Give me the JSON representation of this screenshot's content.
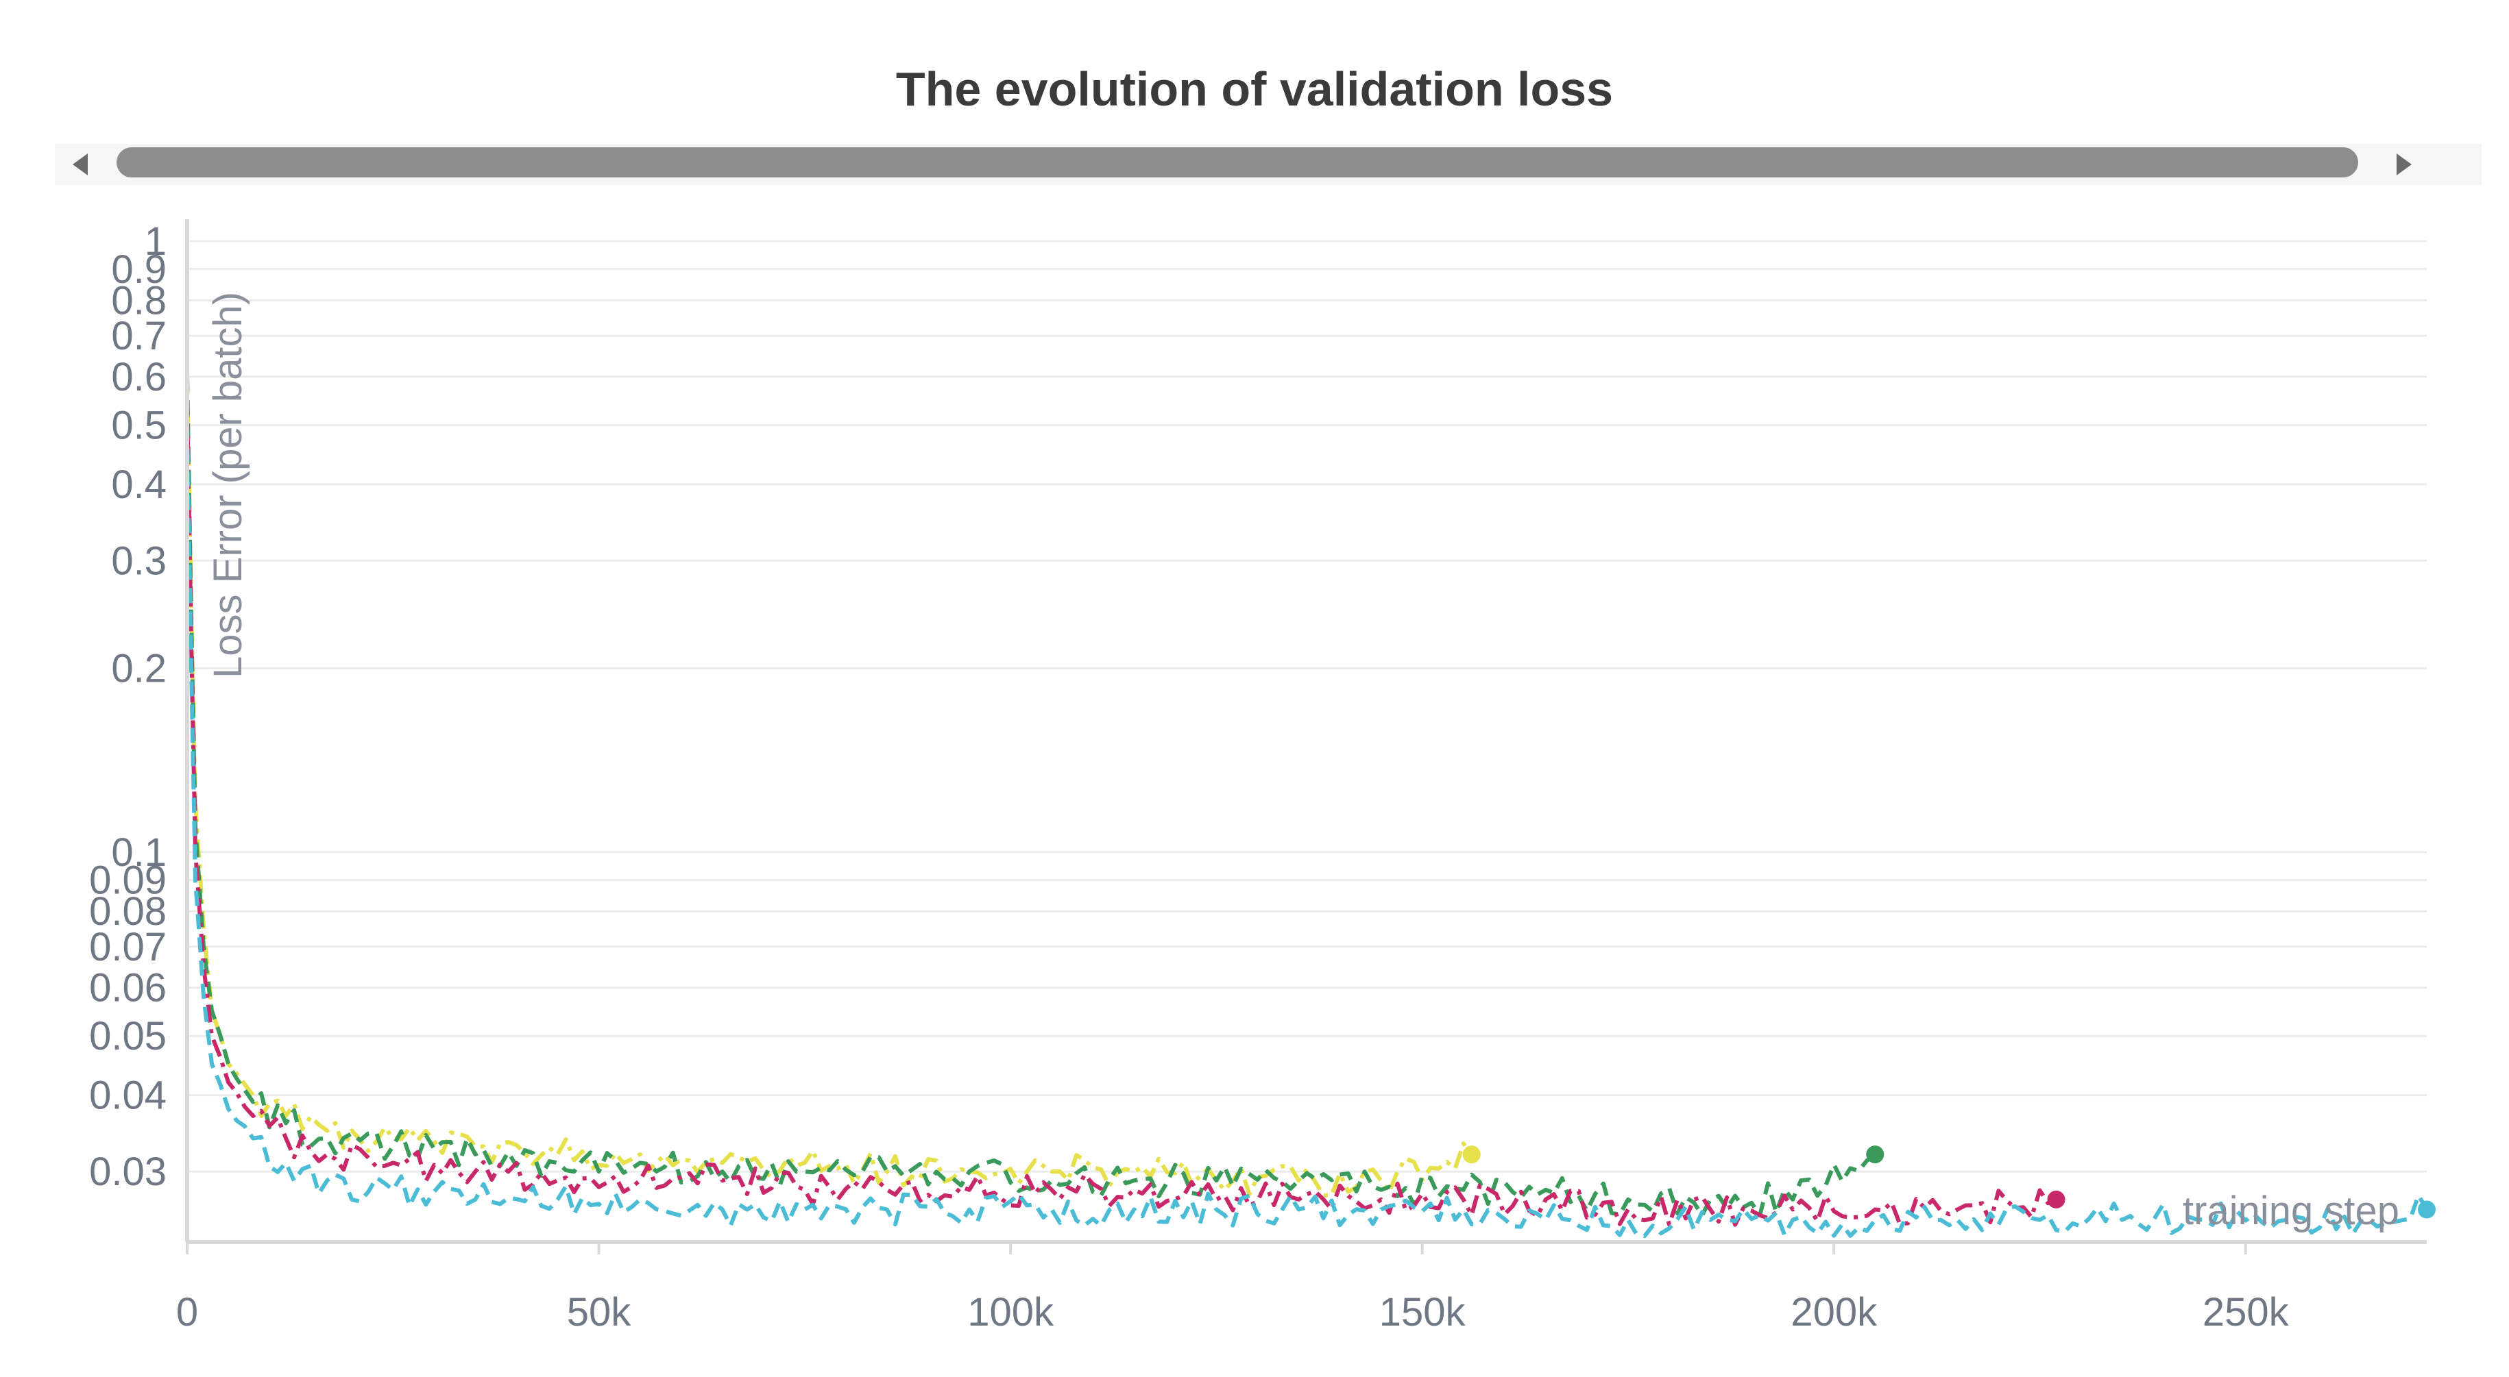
{
  "chart_data": {
    "type": "line",
    "title": "The evolution of validation loss",
    "xlabel": "training step",
    "ylabel": "Loss Error (per batch)",
    "xlim": [
      0,
      272000
    ],
    "ylim": [
      0.023,
      1.0
    ],
    "yscale": "log",
    "grid": true,
    "legend": "none",
    "x_ticks": [
      {
        "value": 0,
        "label": "0"
      },
      {
        "value": 50000,
        "label": "50k"
      },
      {
        "value": 100000,
        "label": "100k"
      },
      {
        "value": 150000,
        "label": "150k"
      },
      {
        "value": 200000,
        "label": "200k"
      },
      {
        "value": 250000,
        "label": "250k"
      }
    ],
    "y_ticks": [
      {
        "value": 1,
        "label": "1"
      },
      {
        "value": 0.9,
        "label": "0.9"
      },
      {
        "value": 0.8,
        "label": "0.8"
      },
      {
        "value": 0.7,
        "label": "0.7"
      },
      {
        "value": 0.6,
        "label": "0.6"
      },
      {
        "value": 0.5,
        "label": "0.5"
      },
      {
        "value": 0.4,
        "label": "0.4"
      },
      {
        "value": 0.3,
        "label": "0.3"
      },
      {
        "value": 0.2,
        "label": "0.2"
      },
      {
        "value": 0.1,
        "label": "0.1"
      },
      {
        "value": 0.09,
        "label": "0.09"
      },
      {
        "value": 0.08,
        "label": "0.08"
      },
      {
        "value": 0.07,
        "label": "0.07"
      },
      {
        "value": 0.06,
        "label": "0.06"
      },
      {
        "value": 0.05,
        "label": "0.05"
      },
      {
        "value": 0.04,
        "label": "0.04"
      },
      {
        "value": 0.03,
        "label": "0.03"
      }
    ],
    "series": [
      {
        "color": "#e6e04a",
        "dash": "dashdot",
        "x": [
          0,
          500,
          1000,
          2000,
          3000,
          5000,
          8000,
          12000,
          17000,
          25000,
          35000,
          45000,
          55000,
          65000,
          75000,
          85000,
          95000,
          105000,
          115000,
          125000,
          135000,
          145000,
          156000
        ],
        "y": [
          0.6,
          0.25,
          0.12,
          0.075,
          0.055,
          0.045,
          0.04,
          0.037,
          0.035,
          0.034,
          0.033,
          0.032,
          0.032,
          0.031,
          0.031,
          0.03,
          0.03,
          0.03,
          0.03,
          0.029,
          0.029,
          0.029,
          0.032
        ]
      },
      {
        "color": "#3a9a5c",
        "dash": "dashed",
        "x": [
          0,
          500,
          1000,
          2000,
          3000,
          5000,
          8000,
          12000,
          17000,
          25000,
          35000,
          45000,
          55000,
          65000,
          75000,
          85000,
          95000,
          105000,
          115000,
          125000,
          135000,
          145000,
          155000,
          165000,
          175000,
          185000,
          195000,
          205000
        ],
        "y": [
          0.6,
          0.24,
          0.11,
          0.07,
          0.055,
          0.045,
          0.039,
          0.036,
          0.034,
          0.033,
          0.032,
          0.031,
          0.031,
          0.03,
          0.03,
          0.03,
          0.03,
          0.029,
          0.029,
          0.029,
          0.029,
          0.028,
          0.028,
          0.028,
          0.027,
          0.027,
          0.027,
          0.032
        ]
      },
      {
        "color": "#c8286a",
        "dash": "dashdot",
        "x": [
          0,
          500,
          1000,
          2000,
          3000,
          5000,
          8000,
          12000,
          17000,
          25000,
          35000,
          45000,
          55000,
          65000,
          75000,
          85000,
          95000,
          105000,
          115000,
          125000,
          135000,
          145000,
          155000,
          165000,
          175000,
          185000,
          195000,
          205000,
          215000,
          227000
        ],
        "y": [
          0.55,
          0.22,
          0.1,
          0.065,
          0.05,
          0.042,
          0.037,
          0.034,
          0.032,
          0.031,
          0.03,
          0.029,
          0.029,
          0.029,
          0.028,
          0.028,
          0.028,
          0.028,
          0.028,
          0.027,
          0.027,
          0.027,
          0.027,
          0.027,
          0.026,
          0.026,
          0.026,
          0.026,
          0.026,
          0.027
        ]
      },
      {
        "color": "#4bbcd6",
        "dash": "dashed",
        "x": [
          0,
          500,
          1000,
          2000,
          3000,
          5000,
          8000,
          12000,
          17000,
          25000,
          35000,
          45000,
          55000,
          65000,
          75000,
          85000,
          95000,
          105000,
          115000,
          125000,
          135000,
          145000,
          155000,
          165000,
          175000,
          185000,
          195000,
          205000,
          215000,
          225000,
          235000,
          245000,
          255000,
          265000,
          272000
        ],
        "y": [
          0.5,
          0.2,
          0.09,
          0.058,
          0.045,
          0.038,
          0.034,
          0.031,
          0.029,
          0.028,
          0.027,
          0.027,
          0.027,
          0.026,
          0.026,
          0.026,
          0.026,
          0.026,
          0.026,
          0.026,
          0.026,
          0.026,
          0.026,
          0.025,
          0.025,
          0.025,
          0.025,
          0.025,
          0.025,
          0.025,
          0.025,
          0.025,
          0.025,
          0.025,
          0.026
        ]
      }
    ]
  }
}
